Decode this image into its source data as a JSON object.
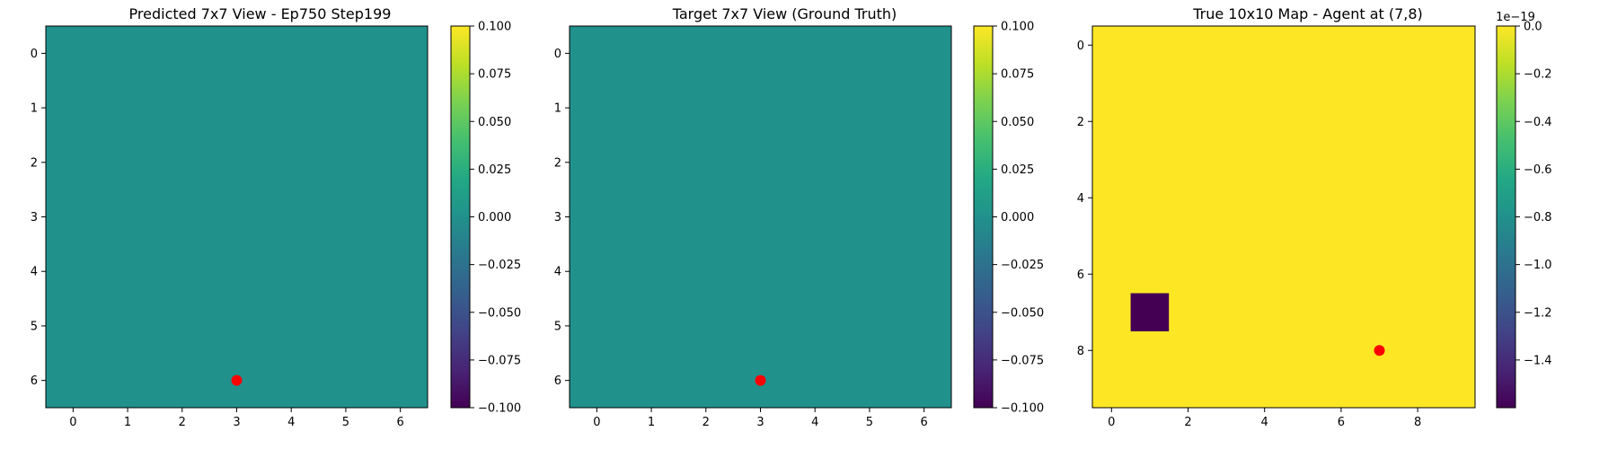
{
  "chart_data": [
    {
      "type": "heatmap",
      "title": "Predicted 7x7 View - Ep750 Step199",
      "grid_size": [
        7,
        7
      ],
      "cell_color": "#21918c",
      "values_fill": 0.0,
      "cells": [],
      "agent_marker": {
        "x": 3,
        "y": 6,
        "color": "#ff0000"
      },
      "xlabel": "",
      "ylabel": "",
      "xticks": [
        0,
        1,
        2,
        3,
        4,
        5,
        6
      ],
      "yticks": [
        0,
        1,
        2,
        3,
        4,
        5,
        6
      ],
      "xlim": [
        -0.5,
        6.5
      ],
      "ylim": [
        6.5,
        -0.5
      ],
      "colorbar": {
        "min": -0.1,
        "max": 0.1,
        "ticks": [
          0.1,
          0.075,
          0.05,
          0.025,
          0.0,
          -0.025,
          -0.05,
          -0.075,
          -0.1
        ],
        "tick_labels": [
          "0.100",
          "0.075",
          "0.050",
          "0.025",
          "0.000",
          "−0.025",
          "−0.050",
          "−0.075",
          "−0.100"
        ],
        "scale_label": ""
      }
    },
    {
      "type": "heatmap",
      "title": "Target 7x7 View (Ground Truth)",
      "grid_size": [
        7,
        7
      ],
      "cell_color": "#21918c",
      "values_fill": 0.0,
      "cells": [],
      "agent_marker": {
        "x": 3,
        "y": 6,
        "color": "#ff0000"
      },
      "xlabel": "",
      "ylabel": "",
      "xticks": [
        0,
        1,
        2,
        3,
        4,
        5,
        6
      ],
      "yticks": [
        0,
        1,
        2,
        3,
        4,
        5,
        6
      ],
      "xlim": [
        -0.5,
        6.5
      ],
      "ylim": [
        6.5,
        -0.5
      ],
      "colorbar": {
        "min": -0.1,
        "max": 0.1,
        "ticks": [
          0.1,
          0.075,
          0.05,
          0.025,
          0.0,
          -0.025,
          -0.05,
          -0.075,
          -0.1
        ],
        "tick_labels": [
          "0.100",
          "0.075",
          "0.050",
          "0.025",
          "0.000",
          "−0.025",
          "−0.050",
          "−0.075",
          "−0.100"
        ],
        "scale_label": ""
      }
    },
    {
      "type": "heatmap",
      "title": "True 10x10 Map - Agent at (7,8)",
      "grid_size": [
        10,
        10
      ],
      "cell_color": "#fde725",
      "values_fill": 0.0,
      "cells": [
        {
          "x": 1,
          "y": 7,
          "value": -1.6e-19,
          "color": "#440154"
        }
      ],
      "agent_marker": {
        "x": 7,
        "y": 8,
        "color": "#ff0000"
      },
      "xlabel": "",
      "ylabel": "",
      "xticks": [
        0,
        2,
        4,
        6,
        8
      ],
      "yticks": [
        0,
        2,
        4,
        6,
        8
      ],
      "xlim": [
        -0.5,
        9.5
      ],
      "ylim": [
        9.5,
        -0.5
      ],
      "colorbar": {
        "min": -1.6,
        "max": 0.0,
        "ticks": [
          0.0,
          -0.2,
          -0.4,
          -0.6,
          -0.8,
          -1.0,
          -1.2,
          -1.4
        ],
        "tick_labels": [
          "0.0",
          "−0.2",
          "−0.4",
          "−0.6",
          "−0.8",
          "−1.0",
          "−1.2",
          "−1.4"
        ],
        "scale_label": "1e−19"
      }
    }
  ]
}
